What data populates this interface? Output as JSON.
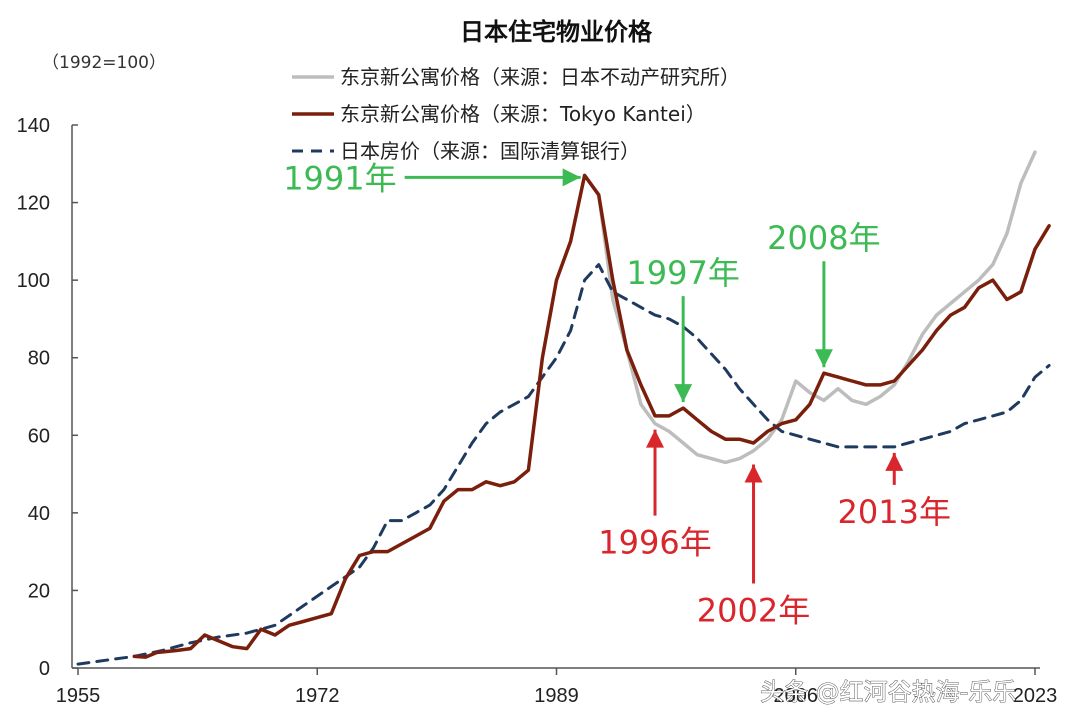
{
  "chart_data": {
    "type": "line",
    "title": "日本住宅物业价格",
    "unit_label": "（1992=100）",
    "xlabel": "",
    "ylabel": "",
    "xlim": [
      1955,
      2023
    ],
    "ylim": [
      0,
      140
    ],
    "x_ticks": [
      "1955",
      "1972",
      "1989",
      "2006",
      "2023"
    ],
    "y_ticks": [
      "0",
      "20",
      "40",
      "60",
      "80",
      "100",
      "120",
      "140"
    ],
    "grid": false,
    "legend_position": "top-center",
    "series": [
      {
        "name": "东京新公寓价格（来源：日本不动产研究所）",
        "color": "#bdbdbd",
        "style": "solid",
        "points": [
          [
            1991,
            127
          ],
          [
            1992,
            122
          ],
          [
            1993,
            95
          ],
          [
            1994,
            82
          ],
          [
            1995,
            68
          ],
          [
            1996,
            63
          ],
          [
            1997,
            61
          ],
          [
            1998,
            58
          ],
          [
            1999,
            55
          ],
          [
            2000,
            54
          ],
          [
            2001,
            53
          ],
          [
            2002,
            54
          ],
          [
            2003,
            56
          ],
          [
            2004,
            59
          ],
          [
            2005,
            64
          ],
          [
            2006,
            74
          ],
          [
            2007,
            71
          ],
          [
            2008,
            69
          ],
          [
            2009,
            72
          ],
          [
            2010,
            69
          ],
          [
            2011,
            68
          ],
          [
            2012,
            70
          ],
          [
            2013,
            73
          ],
          [
            2014,
            79
          ],
          [
            2015,
            86
          ],
          [
            2016,
            91
          ],
          [
            2017,
            94
          ],
          [
            2018,
            97
          ],
          [
            2019,
            100
          ],
          [
            2020,
            104
          ],
          [
            2021,
            112
          ],
          [
            2022,
            125
          ],
          [
            2023,
            133
          ]
        ]
      },
      {
        "name": "东京新公寓价格（来源：Tokyo Kantei）",
        "color": "#7a1f0c",
        "style": "solid",
        "points": [
          [
            1959,
            3
          ],
          [
            1959.8,
            2.8
          ],
          [
            1960.6,
            4
          ],
          [
            1962,
            4.5
          ],
          [
            1963,
            5
          ],
          [
            1964,
            8.5
          ],
          [
            1965,
            7
          ],
          [
            1966,
            5.5
          ],
          [
            1967,
            5
          ],
          [
            1968,
            10
          ],
          [
            1969,
            8.5
          ],
          [
            1970,
            11
          ],
          [
            1971,
            12
          ],
          [
            1972,
            13
          ],
          [
            1973,
            14
          ],
          [
            1974,
            23
          ],
          [
            1975,
            29
          ],
          [
            1976,
            30
          ],
          [
            1977,
            30
          ],
          [
            1978,
            32
          ],
          [
            1979,
            34
          ],
          [
            1980,
            36
          ],
          [
            1981,
            43
          ],
          [
            1982,
            46
          ],
          [
            1983,
            46
          ],
          [
            1984,
            48
          ],
          [
            1985,
            47
          ],
          [
            1986,
            48
          ],
          [
            1987,
            51
          ],
          [
            1988,
            80
          ],
          [
            1989,
            100
          ],
          [
            1990,
            110
          ],
          [
            1991,
            127
          ],
          [
            1992,
            122
          ],
          [
            1993,
            100
          ],
          [
            1994,
            82
          ],
          [
            1995,
            73
          ],
          [
            1996,
            65
          ],
          [
            1997,
            65
          ],
          [
            1998,
            67
          ],
          [
            1999,
            64
          ],
          [
            2000,
            61
          ],
          [
            2001,
            59
          ],
          [
            2002,
            59
          ],
          [
            2003,
            58
          ],
          [
            2004,
            61
          ],
          [
            2005,
            63
          ],
          [
            2006,
            64
          ],
          [
            2007,
            68
          ],
          [
            2008,
            76
          ],
          [
            2009,
            75
          ],
          [
            2010,
            74
          ],
          [
            2011,
            73
          ],
          [
            2012,
            73
          ],
          [
            2013,
            74
          ],
          [
            2014,
            78
          ],
          [
            2015,
            82
          ],
          [
            2016,
            87
          ],
          [
            2017,
            91
          ],
          [
            2018,
            93
          ],
          [
            2019,
            98
          ],
          [
            2020,
            100
          ],
          [
            2021,
            95
          ],
          [
            2022,
            97
          ],
          [
            2023,
            108
          ],
          [
            2024,
            114
          ]
        ]
      },
      {
        "name": "日本房价（来源：国际清算银行）",
        "color": "#1f3a5f",
        "style": "dashed",
        "points": [
          [
            1955,
            1
          ],
          [
            1957,
            2
          ],
          [
            1959,
            3
          ],
          [
            1961,
            4.5
          ],
          [
            1963,
            6.5
          ],
          [
            1965,
            8
          ],
          [
            1967,
            9
          ],
          [
            1969,
            11
          ],
          [
            1971,
            16
          ],
          [
            1973,
            21
          ],
          [
            1975,
            26
          ],
          [
            1976,
            31
          ],
          [
            1977,
            38
          ],
          [
            1978,
            38
          ],
          [
            1979,
            40
          ],
          [
            1980,
            42
          ],
          [
            1981,
            46
          ],
          [
            1982,
            52
          ],
          [
            1983,
            58
          ],
          [
            1984,
            63
          ],
          [
            1985,
            66
          ],
          [
            1986,
            68
          ],
          [
            1987,
            70
          ],
          [
            1988,
            75
          ],
          [
            1989,
            80
          ],
          [
            1990,
            87
          ],
          [
            1991,
            100
          ],
          [
            1992,
            104
          ],
          [
            1993,
            97
          ],
          [
            1994,
            95
          ],
          [
            1995,
            93
          ],
          [
            1996,
            91
          ],
          [
            1997,
            90
          ],
          [
            1998,
            88
          ],
          [
            1999,
            85
          ],
          [
            2000,
            81
          ],
          [
            2001,
            77
          ],
          [
            2002,
            72
          ],
          [
            2003,
            68
          ],
          [
            2004,
            64
          ],
          [
            2005,
            61
          ],
          [
            2006,
            60
          ],
          [
            2007,
            59
          ],
          [
            2008,
            58
          ],
          [
            2009,
            57
          ],
          [
            2010,
            57
          ],
          [
            2011,
            57
          ],
          [
            2012,
            57
          ],
          [
            2013,
            57
          ],
          [
            2014,
            58
          ],
          [
            2015,
            59
          ],
          [
            2016,
            60
          ],
          [
            2017,
            61
          ],
          [
            2018,
            63
          ],
          [
            2019,
            64
          ],
          [
            2020,
            65
          ],
          [
            2021,
            66
          ],
          [
            2022,
            69
          ],
          [
            2023,
            75
          ],
          [
            2024,
            78
          ]
        ]
      }
    ],
    "annotations": [
      {
        "text": "1991年",
        "color": "#3cba54",
        "x": 1991,
        "y": 127,
        "dir": "left"
      },
      {
        "text": "1997年",
        "color": "#3cba54",
        "x": 1998,
        "y": 67,
        "dir": "down"
      },
      {
        "text": "2008年",
        "color": "#3cba54",
        "x": 2008,
        "y": 76,
        "dir": "down"
      },
      {
        "text": "1996年",
        "color": "#d8262c",
        "x": 1996,
        "y": 63,
        "dir": "up"
      },
      {
        "text": "2002年",
        "color": "#d8262c",
        "x": 2003,
        "y": 54,
        "dir": "up"
      },
      {
        "text": "2013年",
        "color": "#d8262c",
        "x": 2013,
        "y": 57,
        "dir": "up"
      }
    ]
  },
  "watermark": "头条 @红河谷热海-乐乐"
}
